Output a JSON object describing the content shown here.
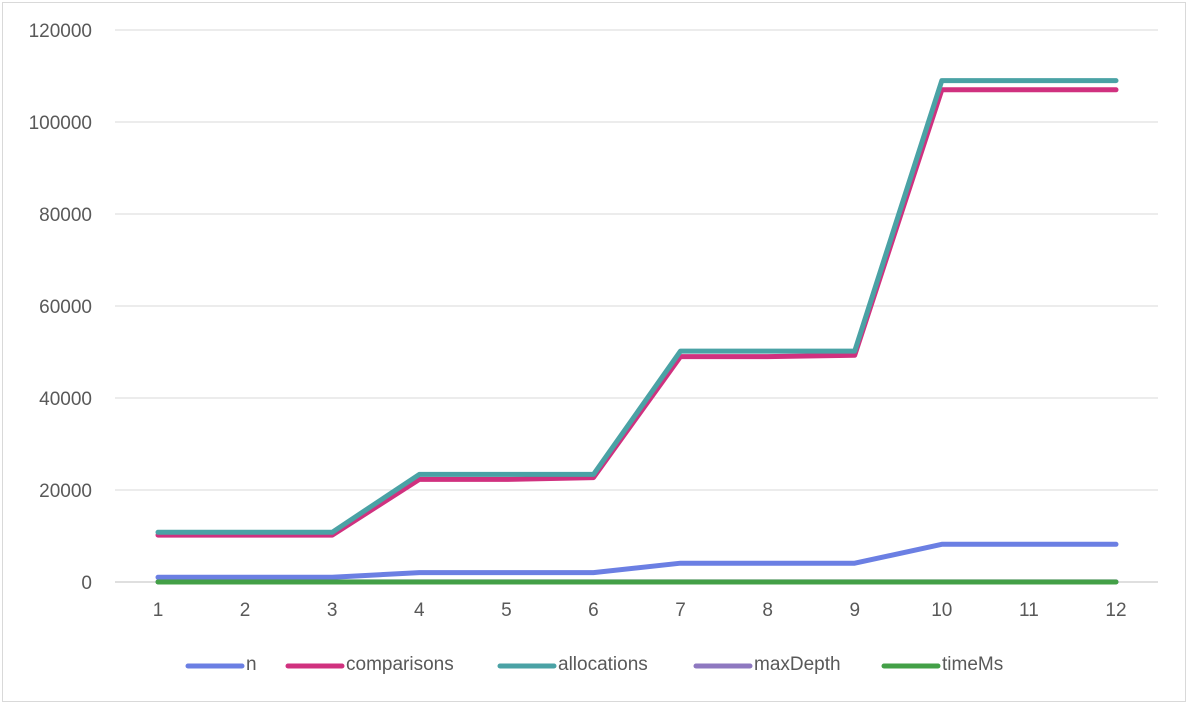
{
  "chart_data": {
    "type": "line",
    "title": "",
    "xlabel": "",
    "ylabel": "",
    "categories": [
      "1",
      "2",
      "3",
      "4",
      "5",
      "6",
      "7",
      "8",
      "9",
      "10",
      "11",
      "12"
    ],
    "ylim": [
      0,
      120000
    ],
    "yticks": [
      "0",
      "20000",
      "40000",
      "60000",
      "80000",
      "100000",
      "120000"
    ],
    "grid": "horizontal",
    "legend": "bottom",
    "series": [
      {
        "name": "n",
        "color": "#6b7fe3",
        "values": [
          1024,
          1024,
          1024,
          2048,
          2048,
          2048,
          4096,
          4096,
          4096,
          8192,
          8192,
          8192
        ]
      },
      {
        "name": "comparisons",
        "color": "#d0317f",
        "values": [
          10200,
          10200,
          10200,
          22300,
          22300,
          22700,
          49000,
          49000,
          49300,
          107000,
          107000,
          107000
        ]
      },
      {
        "name": "allocations",
        "color": "#4aa2a5",
        "values": [
          10800,
          10800,
          10800,
          23400,
          23400,
          23400,
          50200,
          50200,
          50200,
          109000,
          109000,
          109000
        ]
      },
      {
        "name": "maxDepth",
        "color": "#8e78c0",
        "values": [
          12,
          12,
          12,
          13,
          13,
          13,
          14,
          14,
          14,
          15,
          15,
          15
        ]
      },
      {
        "name": "timeMs",
        "color": "#43a047",
        "values": [
          1,
          1,
          1,
          2,
          2,
          2,
          4,
          4,
          4,
          8,
          8,
          8
        ]
      }
    ]
  }
}
